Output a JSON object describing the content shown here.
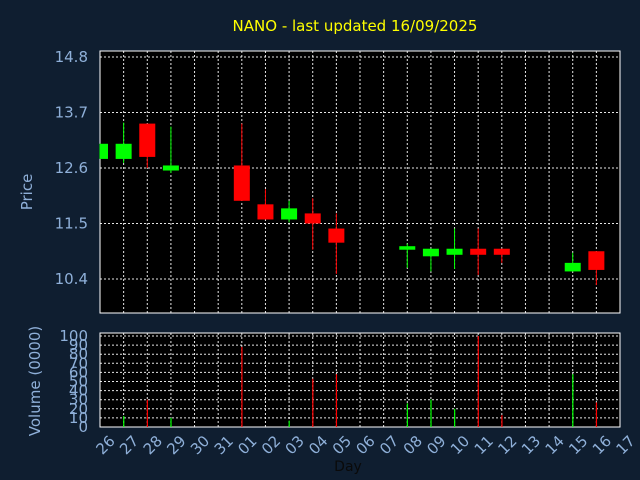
{
  "chart_data": [
    {
      "type": "candlestick",
      "title": "NANO - last updated 16/09/2025",
      "ylabel": "Price",
      "ylim": [
        10.0,
        14.8
      ],
      "yticks": [
        "14.8",
        "13.7",
        "12.6",
        "11.5",
        "10.4"
      ],
      "ytick_values": [
        14.8,
        13.7,
        12.6,
        11.5,
        10.4
      ],
      "grid": true,
      "colors": {
        "up": "#00ff00",
        "down": "#ff0000",
        "background": "#000000",
        "page": "#0f1e30",
        "title": "#ffff00",
        "axis_text": "#8fb0d9"
      },
      "x": [
        "26",
        "27",
        "28",
        "29",
        "30",
        "31",
        "01",
        "02",
        "03",
        "04",
        "05",
        "06",
        "07",
        "08",
        "09",
        "10",
        "11",
        "12",
        "13",
        "14",
        "15",
        "16",
        "17"
      ],
      "candles": [
        {
          "day": "26",
          "open": 12.78,
          "high": 13.08,
          "low": 12.78,
          "close": 13.08
        },
        {
          "day": "27",
          "open": 12.78,
          "high": 13.5,
          "low": 12.7,
          "close": 13.08
        },
        {
          "day": "28",
          "open": 13.48,
          "high": 13.48,
          "low": 12.6,
          "close": 12.82
        },
        {
          "day": "29",
          "open": 12.55,
          "high": 13.42,
          "low": 12.5,
          "close": 12.65
        },
        {
          "day": "01",
          "open": 12.65,
          "high": 13.48,
          "low": 11.95,
          "close": 11.95
        },
        {
          "day": "02",
          "open": 11.88,
          "high": 12.18,
          "low": 11.58,
          "close": 11.58
        },
        {
          "day": "03",
          "open": 11.58,
          "high": 11.95,
          "low": 11.52,
          "close": 11.8
        },
        {
          "day": "04",
          "open": 11.7,
          "high": 12.0,
          "low": 10.98,
          "close": 11.5
        },
        {
          "day": "05",
          "open": 11.4,
          "high": 11.7,
          "low": 10.5,
          "close": 11.12
        },
        {
          "day": "08",
          "open": 10.98,
          "high": 11.1,
          "low": 10.62,
          "close": 11.05
        },
        {
          "day": "09",
          "open": 10.85,
          "high": 11.0,
          "low": 10.55,
          "close": 11.0
        },
        {
          "day": "10",
          "open": 10.88,
          "high": 11.4,
          "low": 10.6,
          "close": 11.0
        },
        {
          "day": "11",
          "open": 11.0,
          "high": 11.4,
          "low": 10.48,
          "close": 10.88
        },
        {
          "day": "12",
          "open": 11.0,
          "high": 11.0,
          "low": 10.72,
          "close": 10.88
        },
        {
          "day": "15",
          "open": 10.55,
          "high": 10.92,
          "low": 10.55,
          "close": 10.72
        },
        {
          "day": "16",
          "open": 10.95,
          "high": 10.95,
          "low": 10.28,
          "close": 10.58
        }
      ]
    },
    {
      "type": "bar",
      "xlabel": "Day",
      "ylabel": "Volume (0000)",
      "ylim": [
        0,
        100
      ],
      "yticks": [
        "100",
        "90",
        "80",
        "70",
        "60",
        "50",
        "40",
        "30",
        "20",
        "10",
        "0"
      ],
      "ytick_values": [
        100,
        90,
        80,
        70,
        60,
        50,
        40,
        30,
        20,
        10,
        0
      ],
      "grid": true,
      "volumes": [
        {
          "day": "27",
          "value": 12,
          "dir": "up"
        },
        {
          "day": "28",
          "value": 30,
          "dir": "down"
        },
        {
          "day": "29",
          "value": 10,
          "dir": "up"
        },
        {
          "day": "01",
          "value": 88,
          "dir": "down"
        },
        {
          "day": "03",
          "value": 7,
          "dir": "up"
        },
        {
          "day": "04",
          "value": 53,
          "dir": "down"
        },
        {
          "day": "05",
          "value": 58,
          "dir": "down"
        },
        {
          "day": "08",
          "value": 26,
          "dir": "up"
        },
        {
          "day": "09",
          "value": 30,
          "dir": "up"
        },
        {
          "day": "10",
          "value": 20,
          "dir": "up"
        },
        {
          "day": "11",
          "value": 100,
          "dir": "down"
        },
        {
          "day": "12",
          "value": 13,
          "dir": "down"
        },
        {
          "day": "15",
          "value": 58,
          "dir": "up"
        },
        {
          "day": "16",
          "value": 27,
          "dir": "down"
        }
      ]
    }
  ]
}
